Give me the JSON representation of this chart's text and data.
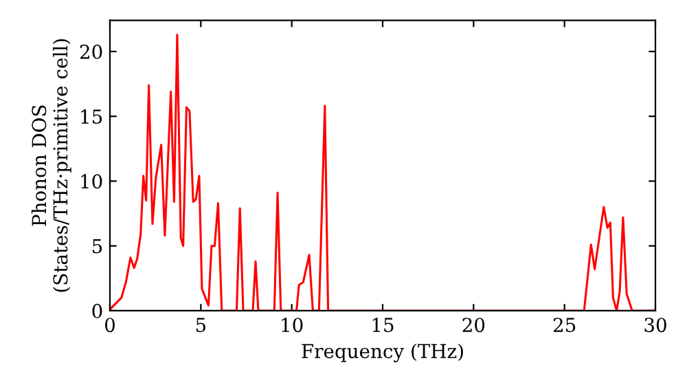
{
  "chart_data": {
    "type": "line",
    "xlabel": "Frequency (THz)",
    "ylabel": "Phonon DOS\n(States/THz·primitive cell)",
    "xlim": [
      0,
      30
    ],
    "ylim": [
      0,
      22.4
    ],
    "xticks": [
      0,
      5,
      10,
      15,
      20,
      25,
      30
    ],
    "yticks": [
      0,
      5,
      10,
      15,
      20
    ],
    "grid": false,
    "marker": "none",
    "line_style": "solid",
    "series": [
      {
        "color": "#ff0000",
        "x": [
          0,
          0.63,
          0.88,
          1.13,
          1.33,
          1.5,
          1.69,
          1.84,
          1.99,
          2.14,
          2.34,
          2.53,
          2.82,
          3.02,
          3.35,
          3.53,
          3.7,
          3.9,
          4.03,
          4.21,
          4.38,
          4.58,
          4.73,
          4.91,
          5.06,
          5.42,
          5.59,
          5.76,
          5.95,
          6.15,
          6.97,
          7.15,
          7.33,
          7.86,
          8.01,
          8.16,
          9.04,
          9.22,
          9.4,
          10.26,
          10.4,
          10.63,
          10.96,
          11.16,
          11.5,
          11.82,
          12.0,
          26.08,
          26.46,
          26.66,
          27.16,
          27.36,
          27.52,
          27.67,
          27.87,
          28.04,
          28.22,
          28.42,
          28.72,
          30
        ],
        "values": [
          0.1,
          1,
          2.2,
          4.1,
          3.3,
          4,
          5.9,
          10.4,
          8.5,
          17.4,
          6.7,
          10.3,
          12.8,
          5.8,
          16.9,
          8.4,
          21.3,
          5.6,
          5.0,
          15.7,
          15.4,
          8.4,
          8.6,
          10.4,
          1.7,
          0.4,
          5.0,
          5.0,
          8.3,
          0,
          0,
          7.9,
          0,
          0,
          3.8,
          0,
          0,
          9.1,
          0,
          0,
          2.0,
          2.2,
          4.3,
          0,
          0,
          15.8,
          0,
          0,
          5.1,
          3.2,
          8.0,
          6.4,
          6.8,
          1.0,
          0,
          1.5,
          7.2,
          1.3,
          0,
          0
        ]
      }
    ]
  }
}
